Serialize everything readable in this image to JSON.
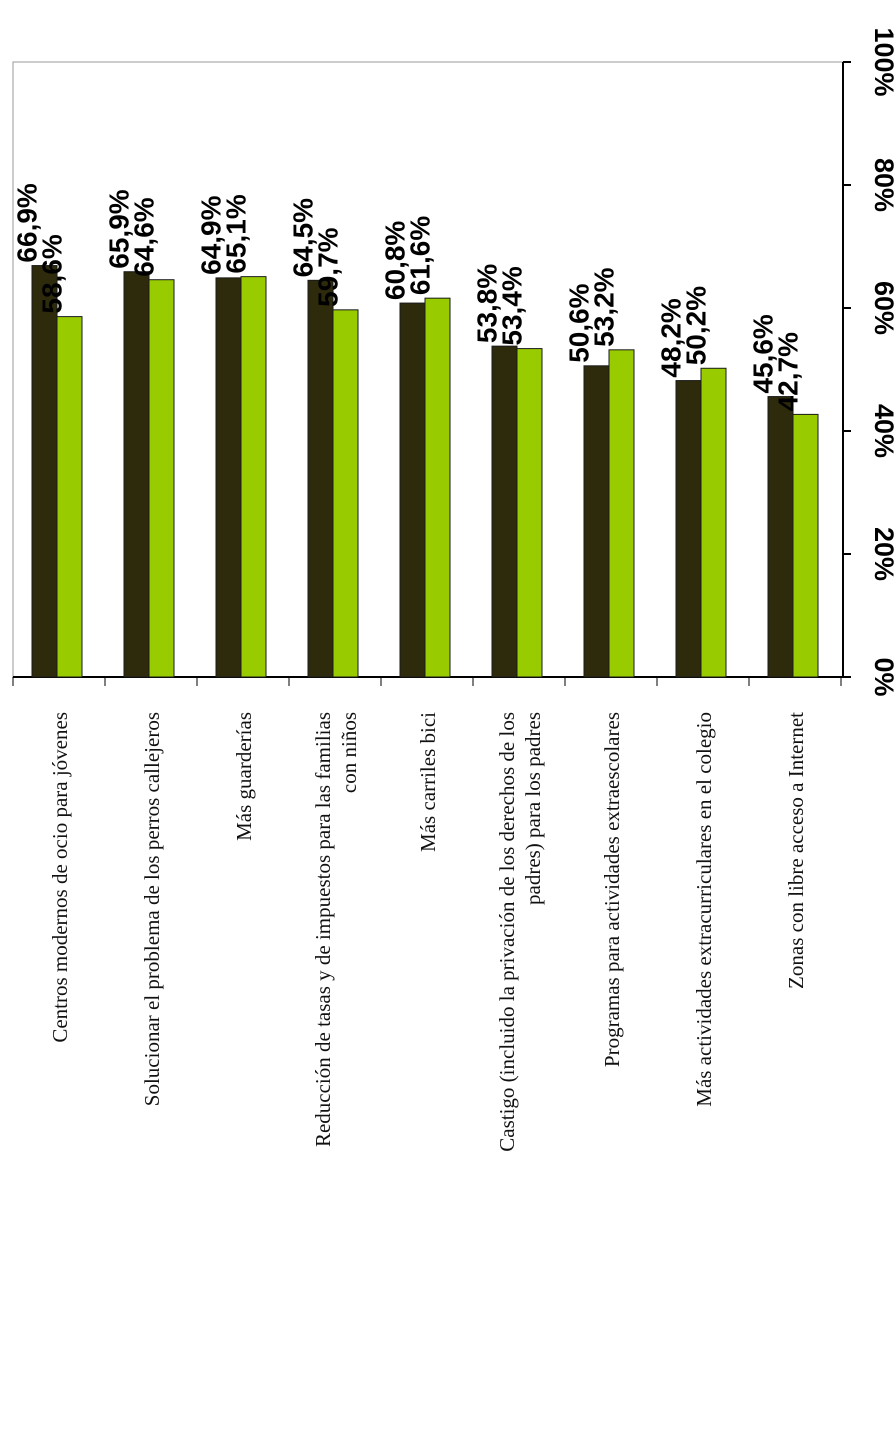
{
  "chart_data": {
    "type": "bar",
    "orientation": "horizontal",
    "rotation": "90deg-clockwise",
    "categories": [
      [
        "Centros modernos de ocio para jóvenes"
      ],
      [
        "Solucionar el problema de los perros callejeros"
      ],
      [
        "Más guarderías"
      ],
      [
        "Reducción de tasas y de impuestos para las familias",
        "con niños"
      ],
      [
        "Más carriles bici"
      ],
      [
        "Castigo (incluido la privación de los derechos de los",
        "padres) para los padres"
      ],
      [
        "Programas para actividades extraescolares"
      ],
      [
        "Más actividades extracurriculares en el colegio"
      ],
      [
        "Zonas con libre acceso a Internet"
      ]
    ],
    "series": [
      {
        "color": "#2e2a0c",
        "values": [
          66.9,
          65.9,
          64.9,
          64.5,
          60.8,
          53.8,
          50.6,
          48.2,
          45.6
        ],
        "labels": [
          "66,9%",
          "65,9%",
          "64,9%",
          "64,5%",
          "60,8%",
          "53,8%",
          "50,6%",
          "48,2%",
          "45,6%"
        ]
      },
      {
        "color": "#99cc00",
        "values": [
          58.6,
          64.6,
          65.1,
          59.7,
          61.6,
          53.4,
          53.2,
          50.2,
          42.7
        ],
        "labels": [
          "58,6%",
          "64,6%",
          "65,1%",
          "59,7%",
          "61,6%",
          "53,4%",
          "53,2%",
          "50,2%",
          "42,7%"
        ]
      }
    ],
    "value_axis": {
      "range": [
        0,
        100
      ],
      "ticks": [
        0,
        20,
        40,
        60,
        80,
        100
      ],
      "tick_labels": [
        "0%",
        "20%",
        "40%",
        "60%",
        "80%",
        "100%"
      ]
    },
    "grid": false,
    "legend": "none"
  }
}
